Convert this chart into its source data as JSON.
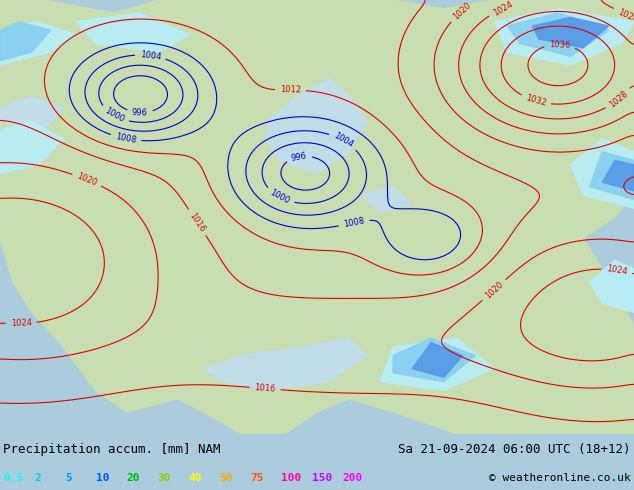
{
  "title_left": "Precipitation accum. [mm] NAM",
  "title_right": "Sa 21-09-2024 06:00 UTC (18+12)",
  "copyright": "© weatheronline.co.uk",
  "legend_values": [
    "0.5",
    "2",
    "5",
    "10",
    "20",
    "30",
    "40",
    "50",
    "75",
    "100",
    "150",
    "200"
  ],
  "legend_colors": [
    "#00ffff",
    "#00ccff",
    "#0099ff",
    "#0055ff",
    "#00bb00",
    "#99cc00",
    "#ffff00",
    "#ffaa00",
    "#ff5500",
    "#ff00aa",
    "#cc00ff",
    "#ff00ff"
  ],
  "land_color": "#c8ddb0",
  "ocean_color": "#c0dde8",
  "bottom_bar_color": "#d4ead8",
  "contour_warm": "#dd0000",
  "contour_cold": "#0000cc",
  "precip_colors": [
    "#b8eef8",
    "#88ccf0",
    "#5599e8",
    "#3366cc"
  ],
  "fig_bg": "#aaccdd",
  "font_size_title": 9,
  "font_size_legend": 8,
  "font_size_contour": 6
}
